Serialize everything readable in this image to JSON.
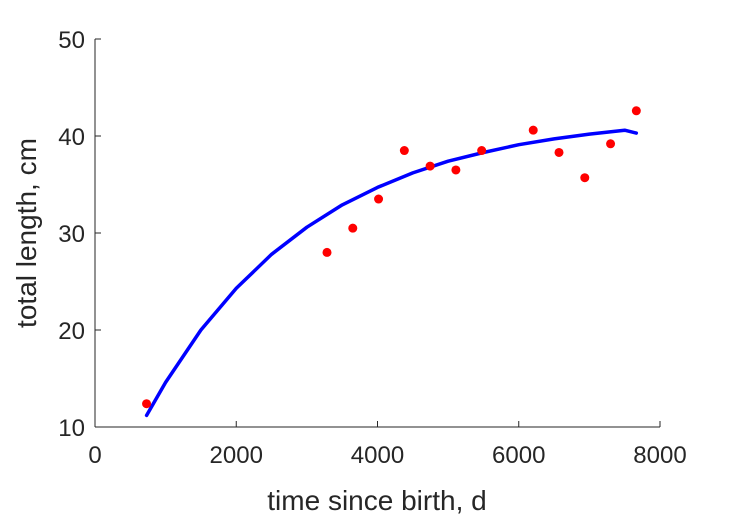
{
  "chart_data": {
    "type": "scatter",
    "title": "",
    "xlabel": "time since birth, d",
    "ylabel": "total length, cm",
    "xlim": [
      0,
      8000
    ],
    "ylim": [
      10,
      50
    ],
    "xticks": [
      0,
      2000,
      4000,
      6000,
      8000
    ],
    "yticks": [
      10,
      20,
      30,
      40,
      50
    ],
    "xtick_labels": [
      "0",
      "2000",
      "4000",
      "6000",
      "8000"
    ],
    "ytick_labels": [
      "10",
      "20",
      "30",
      "40",
      "50"
    ],
    "grid": false,
    "legend": "none",
    "series": [
      {
        "kind": "scatter",
        "color": "#ff0000",
        "x": [
          730,
          3285,
          3650,
          4015,
          4380,
          4745,
          5110,
          5475,
          6205,
          6570,
          6935,
          7300,
          7665
        ],
        "y": [
          12.4,
          28.0,
          30.5,
          33.5,
          38.5,
          36.9,
          36.5,
          38.5,
          40.6,
          38.3,
          35.7,
          39.2,
          42.6
        ]
      },
      {
        "kind": "line",
        "color": "#0000ff",
        "x": [
          730,
          1000,
          1500,
          2000,
          2500,
          3000,
          3500,
          4000,
          4500,
          5000,
          5500,
          6000,
          6500,
          7000,
          7500,
          7665
        ],
        "y": [
          11.2,
          14.6,
          20.0,
          24.3,
          27.8,
          30.6,
          32.9,
          34.7,
          36.2,
          37.4,
          38.3,
          39.1,
          39.7,
          40.2,
          40.6,
          40.3
        ]
      }
    ]
  }
}
